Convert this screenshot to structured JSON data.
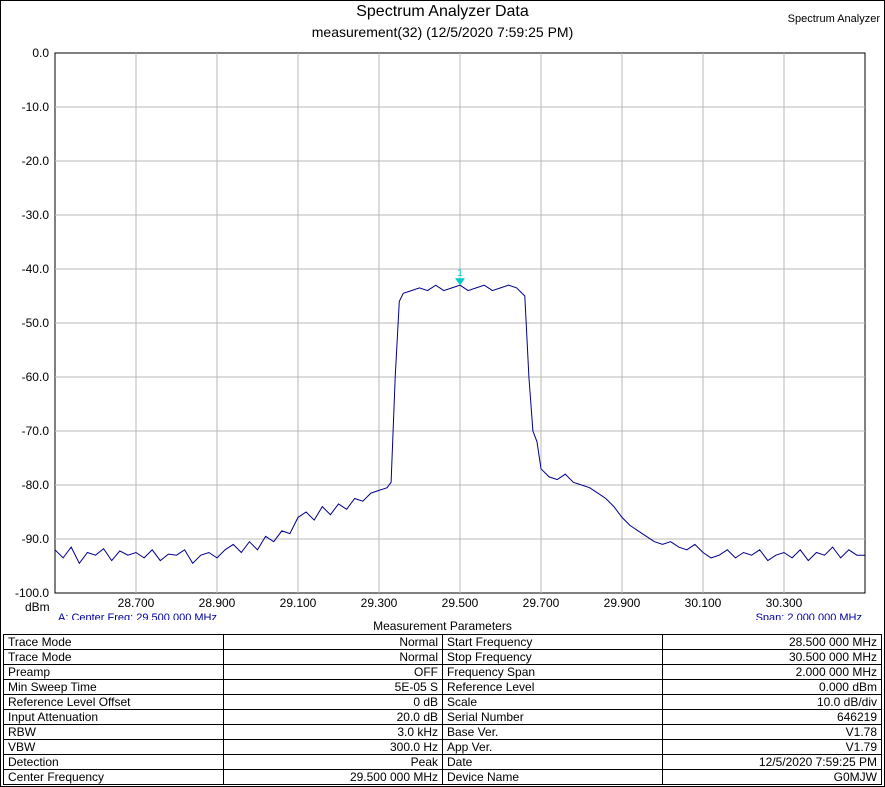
{
  "header": {
    "title": "Spectrum Analyzer Data",
    "subtitle": "measurement(32) (12/5/2020 7:59:25 PM)",
    "right_label": "Spectrum Analyzer"
  },
  "footer_overlay": {
    "left": "A: Center Freq: 29.500 000 MHz",
    "right": "Span: 2.000 000 MHz"
  },
  "chart_data": {
    "type": "line",
    "ylabel": "dBm",
    "xlim": [
      28.5,
      30.5
    ],
    "ylim": [
      -100,
      0
    ],
    "yticks": [
      "0.0",
      "-10.0",
      "-20.0",
      "-30.0",
      "-40.0",
      "-50.0",
      "-60.0",
      "-70.0",
      "-80.0",
      "-90.0",
      "-100.0"
    ],
    "xticks": [
      "28.700",
      "28.900",
      "29.100",
      "29.300",
      "29.500",
      "29.700",
      "29.900",
      "30.100",
      "30.300"
    ],
    "grid": true,
    "line_color": "#00008B",
    "marker": {
      "label": "1",
      "x": 29.5,
      "y": -43.0,
      "color": "#00C8C8"
    },
    "series": [
      {
        "x": [
          28.5,
          28.52,
          28.54,
          28.56,
          28.58,
          28.6,
          28.62,
          28.64,
          28.66,
          28.68,
          28.7,
          28.72,
          28.74,
          28.76,
          28.78,
          28.8,
          28.82,
          28.84,
          28.86,
          28.88,
          28.9,
          28.92,
          28.94,
          28.96,
          28.98,
          29.0,
          29.02,
          29.04,
          29.06,
          29.08,
          29.1,
          29.12,
          29.14,
          29.16,
          29.18,
          29.2,
          29.22,
          29.24,
          29.26,
          29.28,
          29.3,
          29.32,
          29.33,
          29.34,
          29.35,
          29.36,
          29.38,
          29.4,
          29.42,
          29.44,
          29.46,
          29.48,
          29.5,
          29.52,
          29.54,
          29.56,
          29.58,
          29.6,
          29.62,
          29.64,
          29.66,
          29.67,
          29.68,
          29.69,
          29.7,
          29.72,
          29.74,
          29.76,
          29.78,
          29.8,
          29.82,
          29.84,
          29.86,
          29.88,
          29.9,
          29.92,
          29.94,
          29.96,
          29.98,
          30.0,
          30.02,
          30.04,
          30.06,
          30.08,
          30.1,
          30.12,
          30.14,
          30.16,
          30.18,
          30.2,
          30.22,
          30.24,
          30.26,
          30.28,
          30.3,
          30.32,
          30.34,
          30.36,
          30.38,
          30.4,
          30.42,
          30.44,
          30.46,
          30.48,
          30.5
        ],
        "y": [
          -92.0,
          -93.5,
          -91.5,
          -94.5,
          -92.5,
          -93.0,
          -91.8,
          -94.0,
          -92.2,
          -93.0,
          -92.5,
          -93.5,
          -92.0,
          -94.0,
          -92.8,
          -93.0,
          -92.0,
          -94.5,
          -93.0,
          -92.5,
          -93.5,
          -92.0,
          -91.0,
          -92.5,
          -90.5,
          -92.0,
          -89.5,
          -90.5,
          -88.5,
          -89.0,
          -86.0,
          -85.0,
          -86.5,
          -84.0,
          -85.5,
          -83.5,
          -84.5,
          -82.5,
          -83.0,
          -81.5,
          -81.0,
          -80.5,
          -79.5,
          -60.0,
          -46.0,
          -44.5,
          -44.0,
          -43.5,
          -44.0,
          -43.0,
          -44.0,
          -43.5,
          -43.0,
          -44.0,
          -43.5,
          -43.0,
          -44.0,
          -43.5,
          -43.0,
          -43.5,
          -45.0,
          -60.0,
          -70.0,
          -72.0,
          -77.0,
          -78.5,
          -79.0,
          -78.0,
          -79.5,
          -80.0,
          -80.5,
          -81.5,
          -82.5,
          -84.0,
          -86.0,
          -87.5,
          -88.5,
          -89.5,
          -90.5,
          -91.0,
          -90.5,
          -91.5,
          -92.0,
          -91.0,
          -92.5,
          -93.5,
          -93.0,
          -92.0,
          -93.5,
          -92.5,
          -93.0,
          -92.0,
          -94.0,
          -93.0,
          -92.5,
          -93.5,
          -92.0,
          -94.0,
          -92.5,
          -93.0,
          -91.5,
          -93.5,
          -92.0,
          -93.0,
          -93.0
        ]
      }
    ]
  },
  "params": {
    "title": "Measurement Parameters",
    "rows": [
      {
        "l1": "Trace Mode",
        "v1": "Normal",
        "l2": "Start Frequency",
        "v2": "28.500 000 MHz"
      },
      {
        "l1": "Trace Mode",
        "v1": "Normal",
        "l2": "Stop Frequency",
        "v2": "30.500 000 MHz"
      },
      {
        "l1": "Preamp",
        "v1": "OFF",
        "l2": "Frequency Span",
        "v2": "2.000 000 MHz"
      },
      {
        "l1": "Min Sweep Time",
        "v1": "5E-05 S",
        "l2": "Reference Level",
        "v2": "0.000  dBm"
      },
      {
        "l1": "Reference Level Offset",
        "v1": "0 dB",
        "l2": "Scale",
        "v2": "10.0  dB/div"
      },
      {
        "l1": "Input Attenuation",
        "v1": "20.0 dB",
        "l2": "Serial Number",
        "v2": "646219"
      },
      {
        "l1": "RBW",
        "v1": "3.0 kHz",
        "l2": "Base Ver.",
        "v2": "V1.78"
      },
      {
        "l1": "VBW",
        "v1": "300.0 Hz",
        "l2": "App Ver.",
        "v2": "V1.79"
      },
      {
        "l1": "Detection",
        "v1": "Peak",
        "l2": "Date",
        "v2": "12/5/2020 7:59:25 PM"
      },
      {
        "l1": "Center Frequency",
        "v1": "29.500 000 MHz",
        "l2": "Device Name",
        "v2": "G0MJW"
      }
    ]
  }
}
